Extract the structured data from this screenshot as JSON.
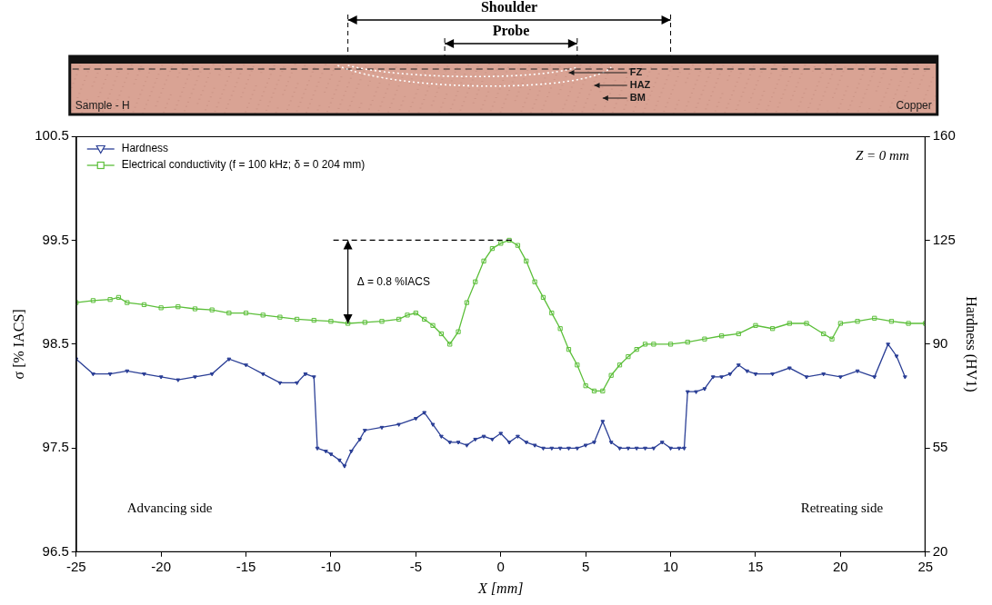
{
  "chart_data": {
    "type": "line",
    "x_label": "X [mm]",
    "y_label": "σ [% IACS]",
    "y2_label": "Hardness (HV1)",
    "xlim": [
      -25,
      25
    ],
    "xticks": [
      -25,
      -20,
      -15,
      -10,
      -5,
      0,
      5,
      10,
      15,
      20,
      25
    ],
    "ylim": [
      96.5,
      100.5
    ],
    "yticks": [
      96.5,
      97.5,
      98.5,
      99.5,
      100.5
    ],
    "y2lim": [
      20,
      160
    ],
    "y2ticks": [
      20,
      55,
      90,
      125,
      160
    ],
    "grid": false,
    "legend": "upper left",
    "series": [
      {
        "name": "Hardness",
        "color": "#2b3f96",
        "marker": "triangle-down",
        "axis": "y2",
        "x": [
          -25,
          -24,
          -23,
          -22,
          -21,
          -20,
          -19,
          -18,
          -17,
          -16,
          -15,
          -14,
          -13,
          -12,
          -11.5,
          -11,
          -10.8,
          -10.3,
          -10,
          -9.5,
          -9.2,
          -8.8,
          -8.3,
          -8,
          -7,
          -6,
          -5,
          -4.5,
          -4,
          -3.5,
          -3,
          -2.5,
          -2,
          -1.5,
          -1,
          -0.5,
          0,
          0.5,
          1,
          1.5,
          2,
          2.5,
          3,
          3.5,
          4,
          4.5,
          5,
          5.5,
          6,
          6.5,
          7,
          7.5,
          8,
          8.5,
          9,
          9.5,
          10,
          10.5,
          10.8,
          11,
          11.5,
          12,
          12.5,
          13,
          13.5,
          14,
          14.5,
          15,
          16,
          17,
          18,
          19,
          20,
          21,
          22,
          22.8,
          23.3,
          23.8
        ],
        "values": [
          85,
          80,
          80,
          81,
          80,
          79,
          78,
          79,
          80,
          85,
          83,
          80,
          77,
          77,
          80,
          79,
          55,
          54,
          53,
          51,
          49,
          54,
          58,
          61,
          62,
          63,
          65,
          67,
          63,
          59,
          57,
          57,
          56,
          58,
          59,
          58,
          60,
          57,
          59,
          57,
          56,
          55,
          55,
          55,
          55,
          55,
          56,
          57,
          64,
          57,
          55,
          55,
          55,
          55,
          55,
          57,
          55,
          55,
          55,
          74,
          74,
          75,
          79,
          79,
          80,
          83,
          81,
          80,
          80,
          82,
          79,
          80,
          79,
          81,
          79,
          90,
          86,
          79
        ]
      },
      {
        "name": "Electrical conductivity (f = 100 kHz; δ = 0 204 mm)",
        "color": "#5cbf3a",
        "marker": "square",
        "x": [
          -25,
          -24,
          -23,
          -22.5,
          -22,
          -21,
          -20,
          -19,
          -18,
          -17,
          -16,
          -15,
          -14,
          -13,
          -12,
          -11,
          -10,
          -9,
          -8,
          -7,
          -6,
          -5.5,
          -5,
          -4.5,
          -4,
          -3.5,
          -3,
          -2.5,
          -2,
          -1.5,
          -1,
          -0.5,
          0,
          0.5,
          1,
          1.5,
          2,
          2.5,
          3,
          3.5,
          4,
          4.5,
          5,
          5.5,
          6,
          6.5,
          7,
          7.5,
          8,
          8.5,
          9,
          10,
          11,
          12,
          13,
          14,
          15,
          16,
          17,
          18,
          19,
          19.5,
          20,
          21,
          22,
          23,
          24,
          25
        ],
        "values": [
          98.9,
          98.92,
          98.93,
          98.95,
          98.9,
          98.88,
          98.85,
          98.86,
          98.84,
          98.83,
          98.8,
          98.8,
          98.78,
          98.76,
          98.74,
          98.73,
          98.72,
          98.7,
          98.71,
          98.72,
          98.74,
          98.78,
          98.8,
          98.74,
          98.68,
          98.6,
          98.5,
          98.62,
          98.9,
          99.1,
          99.3,
          99.42,
          99.47,
          99.5,
          99.45,
          99.3,
          99.1,
          98.95,
          98.8,
          98.65,
          98.45,
          98.3,
          98.1,
          98.05,
          98.05,
          98.2,
          98.3,
          98.38,
          98.45,
          98.5,
          98.5,
          98.5,
          98.52,
          98.55,
          98.58,
          98.6,
          98.68,
          98.65,
          98.7,
          98.7,
          98.6,
          98.55,
          98.7,
          98.72,
          98.75,
          98.72,
          98.7,
          98.7
        ]
      }
    ],
    "annotations": [
      {
        "text": "Z = 0 mm"
      },
      {
        "text": "Δ = 0.8 %IACS",
        "x": -9,
        "y": [
          98.7,
          99.5
        ],
        "line_to_x": 0.8
      },
      {
        "text": "Advancing side"
      },
      {
        "text": "Retreating side"
      }
    ]
  },
  "micrograph": {
    "shoulder": {
      "label": "Shoulder",
      "x": [
        -9,
        10
      ]
    },
    "probe": {
      "label": "Probe",
      "x": [
        -3.3,
        4.5
      ]
    },
    "zones": [
      "FZ",
      "HAZ",
      "BM"
    ],
    "sample_label": "Sample - H",
    "material_label": "Copper"
  }
}
